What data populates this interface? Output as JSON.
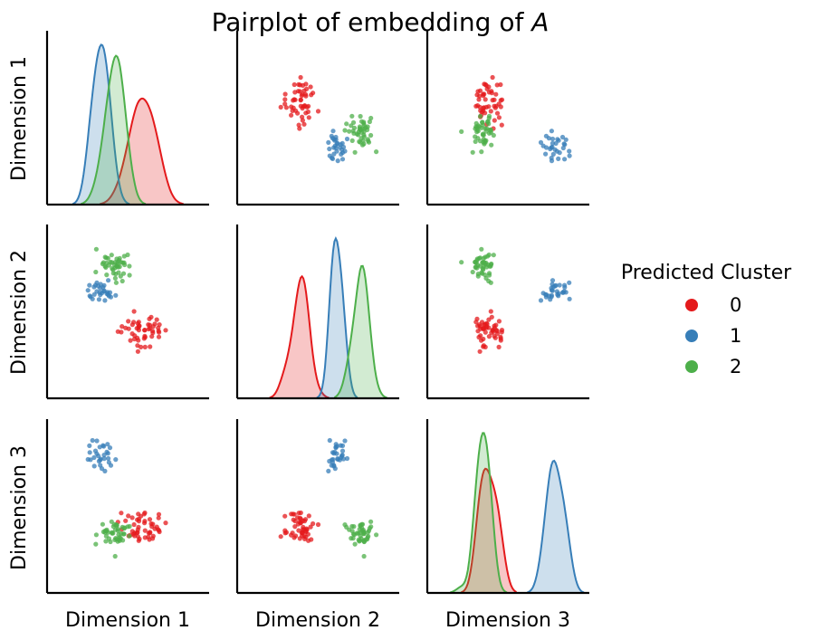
{
  "chart_data": {
    "type": "scatter",
    "title": "Pairplot of embedding of A",
    "title_prefix": "Pairplot of embedding of ",
    "title_italic": "A",
    "variables": [
      "Dimension 1",
      "Dimension 2",
      "Dimension 3"
    ],
    "ticks_shown": false,
    "grid": false,
    "legend": {
      "title": "Predicted Cluster",
      "placement": "right",
      "entries": [
        {
          "label": "0",
          "color": "#e41a1c"
        },
        {
          "label": "1",
          "color": "#377eb8"
        },
        {
          "label": "2",
          "color": "#4daf4a"
        }
      ]
    },
    "ranges": [
      [
        -0.8,
        2.2
      ],
      [
        -1.0,
        3.0
      ],
      [
        -0.5,
        2.5
      ]
    ],
    "clusters": [
      {
        "name": "0",
        "color": "#e41a1c",
        "n": 50,
        "mean": [
          0.95,
          0.55,
          0.65
        ],
        "sd": [
          0.22,
          0.18,
          0.14
        ]
      },
      {
        "name": "1",
        "color": "#377eb8",
        "n": 30,
        "mean": [
          0.2,
          1.45,
          1.85
        ],
        "sd": [
          0.14,
          0.14,
          0.13
        ]
      },
      {
        "name": "2",
        "color": "#4daf4a",
        "n": 45,
        "mean": [
          0.45,
          2.05,
          0.55
        ],
        "sd": [
          0.16,
          0.17,
          0.12
        ]
      }
    ]
  }
}
